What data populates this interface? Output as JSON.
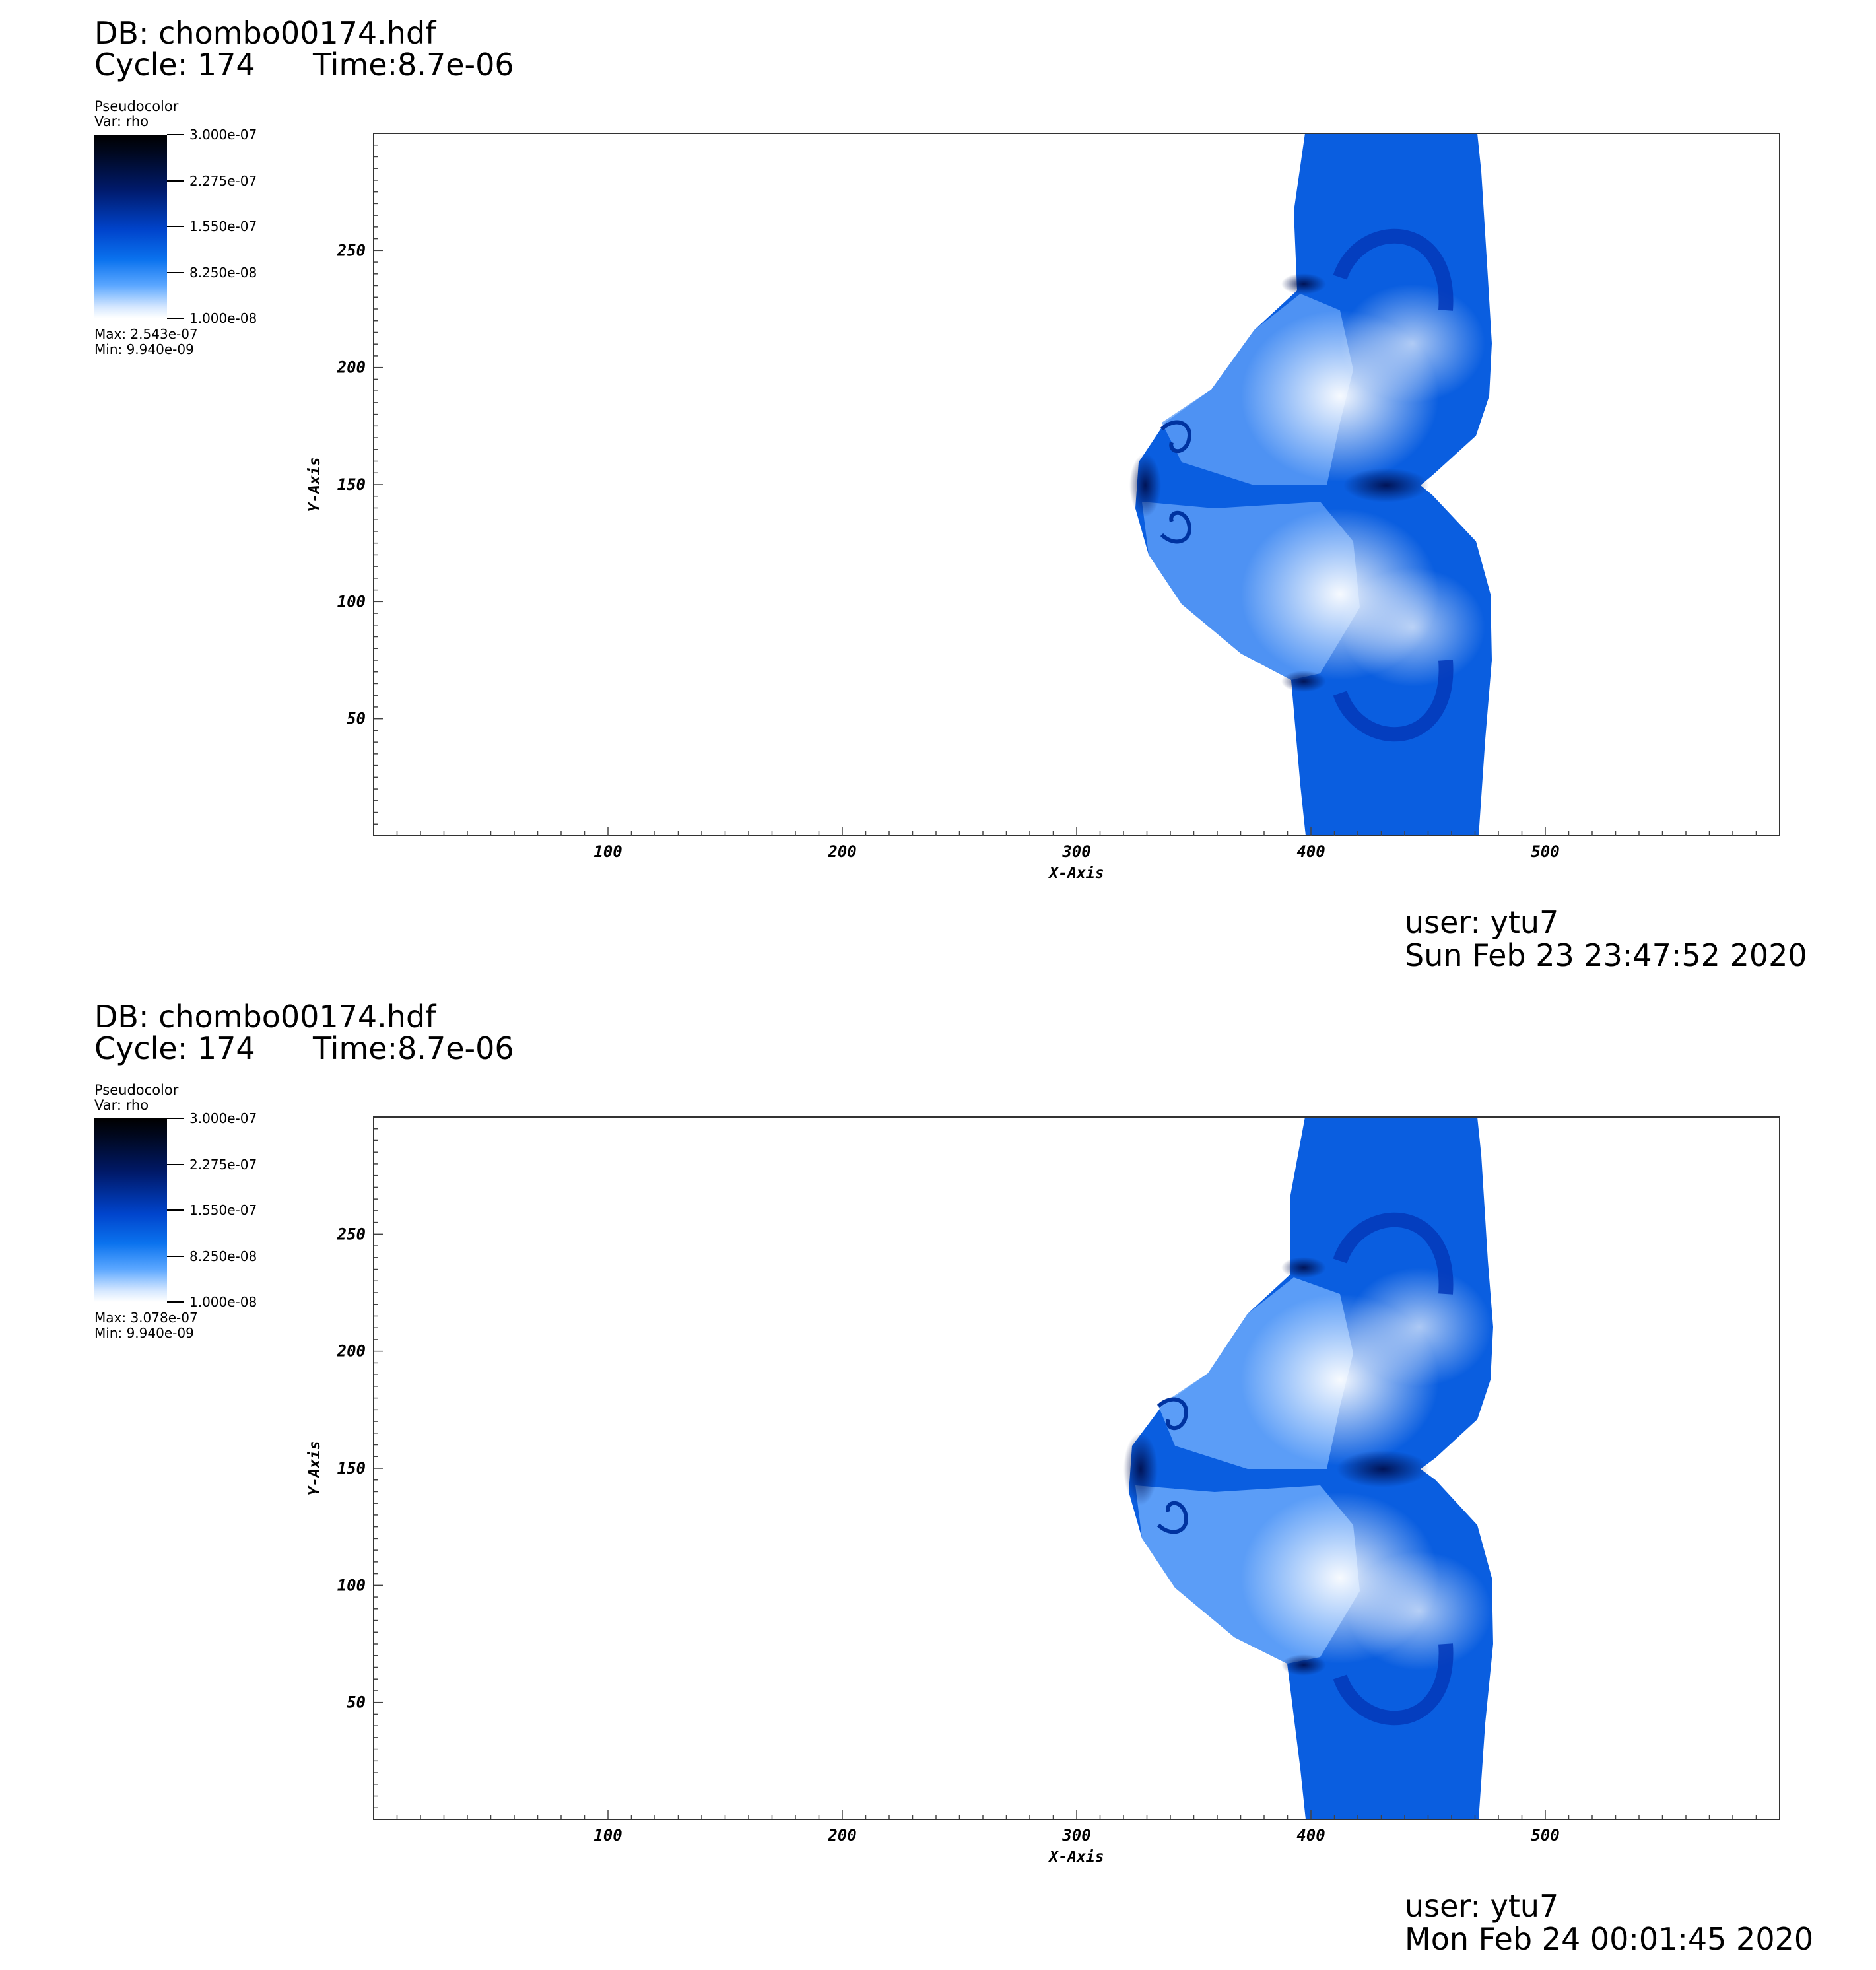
{
  "panels": [
    {
      "db": "DB: chombo00174.hdf",
      "cycle": "Cycle: 174",
      "time": "Time:8.7e-06",
      "legend": {
        "title": "Pseudocolor",
        "var": "Var: rho",
        "ticks": [
          "3.000e-07",
          "2.275e-07",
          "1.550e-07",
          "8.250e-08",
          "1.000e-08"
        ],
        "max": "Max:  2.543e-07",
        "min": "Min:  9.940e-09"
      },
      "user": "user: ytu7",
      "date": "Sun Feb 23 23:47:52 2020"
    },
    {
      "db": "DB: chombo00174.hdf",
      "cycle": "Cycle: 174",
      "time": "Time:8.7e-06",
      "legend": {
        "title": "Pseudocolor",
        "var": "Var: rho",
        "ticks": [
          "3.000e-07",
          "2.275e-07",
          "1.550e-07",
          "8.250e-08",
          "1.000e-08"
        ],
        "max": "Max:  3.078e-07",
        "min": "Min:  9.940e-09"
      },
      "user": "user: ytu7",
      "date": "Mon Feb 24 00:01:45 2020"
    }
  ],
  "chart_data": [
    {
      "type": "heatmap",
      "variable": "rho",
      "xlabel": "X-Axis",
      "ylabel": "Y-Axis",
      "xlim": [
        0,
        600
      ],
      "ylim": [
        0,
        300
      ],
      "xticks": [
        100,
        200,
        300,
        400,
        500
      ],
      "yticks": [
        50,
        100,
        150,
        200,
        250
      ],
      "color_range": [
        1e-08,
        3e-07
      ],
      "colormap": [
        "#ffffff",
        "#0a72ee",
        "#001a6b",
        "#000000"
      ],
      "data_max": 2.543e-07,
      "data_min": 9.94e-09
    },
    {
      "type": "heatmap",
      "variable": "rho",
      "xlabel": "X-Axis",
      "ylabel": "Y-Axis",
      "xlim": [
        0,
        600
      ],
      "ylim": [
        0,
        300
      ],
      "xticks": [
        100,
        200,
        300,
        400,
        500
      ],
      "yticks": [
        50,
        100,
        150,
        200,
        250
      ],
      "color_range": [
        1e-08,
        3e-07
      ],
      "colormap": [
        "#ffffff",
        "#0a72ee",
        "#001a6b",
        "#000000"
      ],
      "data_max": 3.078e-07,
      "data_min": 9.94e-09
    }
  ]
}
